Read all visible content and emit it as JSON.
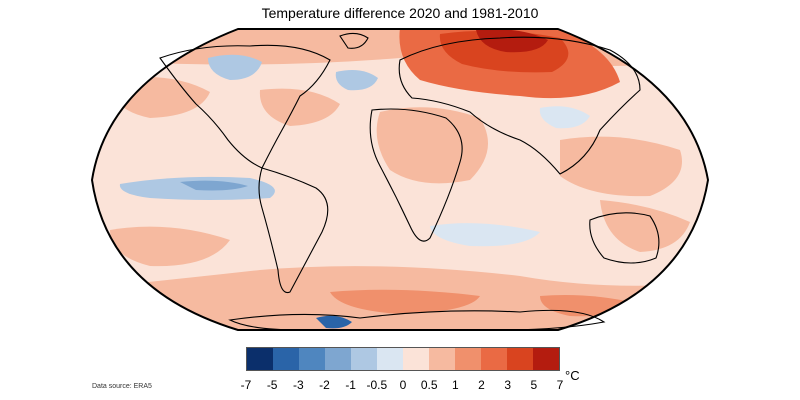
{
  "map": {
    "title": "Temperature difference 2020 and 1981-2010",
    "source": "Data source: ERA5",
    "unit": "°C"
  },
  "legend": {
    "ticks": [
      "-7",
      "-5",
      "-3",
      "-2",
      "-1",
      "-0.5",
      "0",
      "0.5",
      "1",
      "2",
      "3",
      "5",
      "7"
    ],
    "colors": [
      "#0b2f6b",
      "#2a64a8",
      "#4f86bf",
      "#7ea6d0",
      "#aec8e3",
      "#dae6f2",
      "#fbe3d8",
      "#f6baa0",
      "#f0906c",
      "#ea6a44",
      "#d9441f",
      "#b41c0f"
    ]
  },
  "palette": {
    "ocean_base": "#fbe3d8",
    "coast": "#000000"
  }
}
